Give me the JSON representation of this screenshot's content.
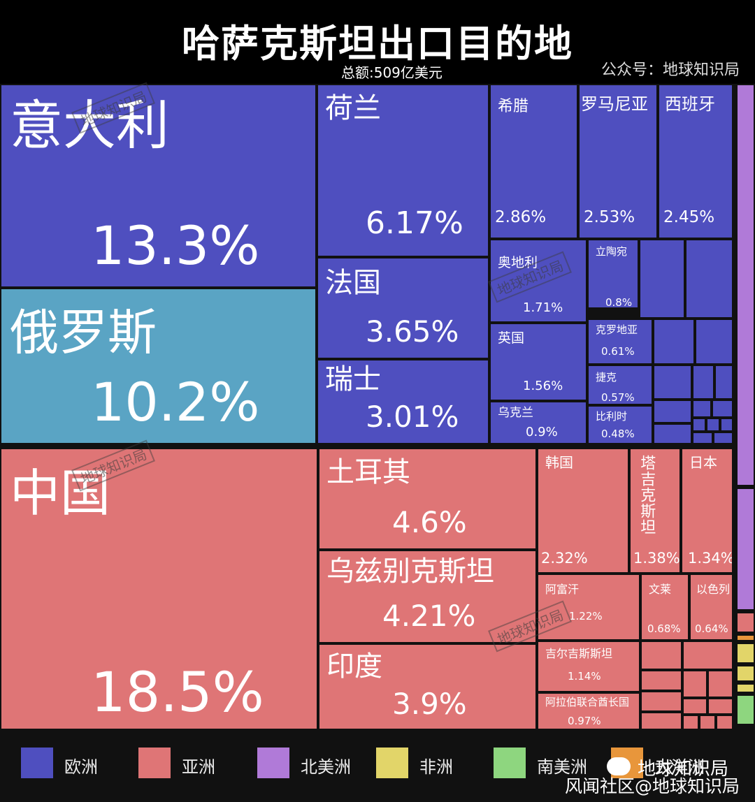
{
  "header": {
    "title": "哈萨克斯坦出口目的地",
    "subtitle": "总额:509亿美元",
    "source": "公众号：地球知识局"
  },
  "colors": {
    "欧洲": "#4f4fbf",
    "亚洲": "#df7576",
    "北美洲": "#b07ad8",
    "非洲": "#e2d569",
    "南美洲": "#8ed67f",
    "大洋洲": "#e8963b",
    "russia": "#5aa4c4"
  },
  "legend": [
    {
      "label": "欧洲",
      "color": "#4f4fbf"
    },
    {
      "label": "亚洲",
      "color": "#df7576"
    },
    {
      "label": "北美洲",
      "color": "#b07ad8"
    },
    {
      "label": "非洲",
      "color": "#e2d569"
    },
    {
      "label": "南美洲",
      "color": "#8ed67f"
    },
    {
      "label": "大洋洲",
      "color": "#e8963b"
    }
  ],
  "footer": {
    "brand": "地球知识局",
    "watermark": "风闻社区@地球知识局",
    "cell_watermark": "地球知识局"
  },
  "chart_data": {
    "type": "treemap",
    "title": "哈萨克斯坦出口目的地",
    "subtitle": "总额:509亿美元",
    "unit": "%",
    "items": [
      {
        "name": "中国",
        "value": 18.5,
        "label": "18.5%",
        "region": "亚洲"
      },
      {
        "name": "意大利",
        "value": 13.3,
        "label": "13.3%",
        "region": "欧洲"
      },
      {
        "name": "俄罗斯",
        "value": 10.2,
        "label": "10.2%",
        "region": "欧洲"
      },
      {
        "name": "荷兰",
        "value": 6.17,
        "label": "6.17%",
        "region": "欧洲"
      },
      {
        "name": "土耳其",
        "value": 4.6,
        "label": "4.6%",
        "region": "亚洲"
      },
      {
        "name": "乌兹别克斯坦",
        "value": 4.21,
        "label": "4.21%",
        "region": "亚洲"
      },
      {
        "name": "印度",
        "value": 3.9,
        "label": "3.9%",
        "region": "亚洲"
      },
      {
        "name": "法国",
        "value": 3.65,
        "label": "3.65%",
        "region": "欧洲"
      },
      {
        "name": "瑞士",
        "value": 3.01,
        "label": "3.01%",
        "region": "欧洲"
      },
      {
        "name": "希腊",
        "value": 2.86,
        "label": "2.86%",
        "region": "欧洲"
      },
      {
        "name": "罗马尼亚",
        "value": 2.53,
        "label": "2.53%",
        "region": "欧洲"
      },
      {
        "name": "西班牙",
        "value": 2.45,
        "label": "2.45%",
        "region": "欧洲"
      },
      {
        "name": "韩国",
        "value": 2.32,
        "label": "2.32%",
        "region": "亚洲"
      },
      {
        "name": "奥地利",
        "value": 1.71,
        "label": "1.71%",
        "region": "欧洲"
      },
      {
        "name": "英国",
        "value": 1.56,
        "label": "1.56%",
        "region": "欧洲"
      },
      {
        "name": "塔吉克斯坦",
        "value": 1.38,
        "label": "1.38%",
        "region": "亚洲"
      },
      {
        "name": "日本",
        "value": 1.34,
        "label": "1.34%",
        "region": "亚洲"
      },
      {
        "name": "阿富汗",
        "value": 1.22,
        "label": "1.22%",
        "region": "亚洲"
      },
      {
        "name": "吉尔吉斯斯坦",
        "value": 1.14,
        "label": "1.14%",
        "region": "亚洲"
      },
      {
        "name": "阿拉伯联合酋长国",
        "value": 0.97,
        "label": "0.97%",
        "region": "亚洲"
      },
      {
        "name": "乌克兰",
        "value": 0.9,
        "label": "0.9%",
        "region": "欧洲"
      },
      {
        "name": "立陶宛",
        "value": 0.8,
        "label": "0.8%",
        "region": "欧洲"
      },
      {
        "name": "文莱",
        "value": 0.68,
        "label": "0.68%",
        "region": "亚洲"
      },
      {
        "name": "以色列",
        "value": 0.64,
        "label": "0.64%",
        "region": "亚洲"
      },
      {
        "name": "克罗地亚",
        "value": 0.61,
        "label": "0.61%",
        "region": "欧洲"
      },
      {
        "name": "捷克",
        "value": 0.57,
        "label": "0.57%",
        "region": "欧洲"
      },
      {
        "name": "比利时",
        "value": 0.48,
        "label": "0.48%",
        "region": "欧洲"
      }
    ]
  }
}
